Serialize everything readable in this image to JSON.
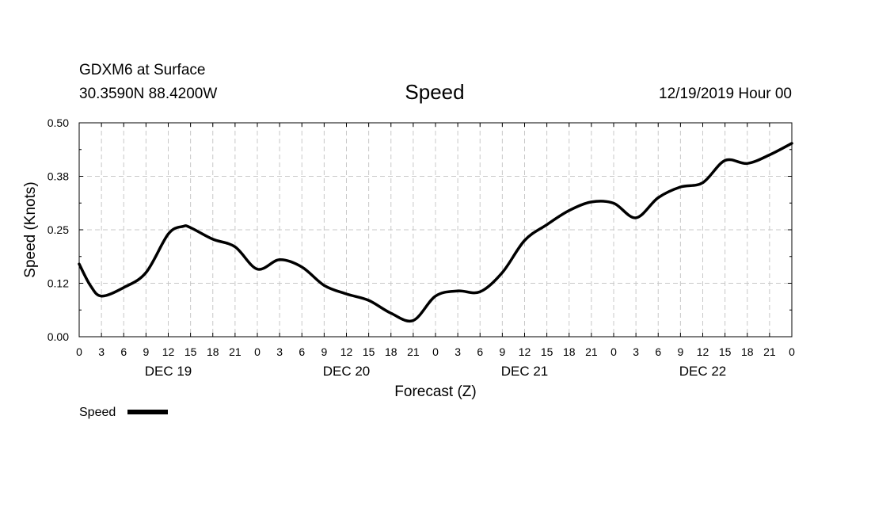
{
  "header": {
    "station": "GDXM6 at Surface",
    "location": "30.3590N 88.4200W",
    "title": "Speed",
    "run": "12/19/2019 Hour 00"
  },
  "chart_data": {
    "type": "line",
    "title": "Speed",
    "xlabel": "Forecast (Z)",
    "ylabel": "Speed (Knots)",
    "x_unit": "hours from 12/19/2019 00Z",
    "xlim": [
      0,
      96
    ],
    "ylim": [
      0,
      0.5
    ],
    "y_ticks": [
      {
        "value": 0,
        "label": "0.00"
      },
      {
        "value": 0.125,
        "label": "0.12"
      },
      {
        "value": 0.25,
        "label": "0.25"
      },
      {
        "value": 0.375,
        "label": "0.38"
      },
      {
        "value": 0.5,
        "label": "0.50"
      }
    ],
    "x_ticks": [
      {
        "hour": 0,
        "label": "0"
      },
      {
        "hour": 3,
        "label": "3"
      },
      {
        "hour": 6,
        "label": "6"
      },
      {
        "hour": 9,
        "label": "9"
      },
      {
        "hour": 12,
        "label": "12"
      },
      {
        "hour": 15,
        "label": "15"
      },
      {
        "hour": 18,
        "label": "18"
      },
      {
        "hour": 21,
        "label": "21"
      },
      {
        "hour": 24,
        "label": "0"
      },
      {
        "hour": 27,
        "label": "3"
      },
      {
        "hour": 30,
        "label": "6"
      },
      {
        "hour": 33,
        "label": "9"
      },
      {
        "hour": 36,
        "label": "12"
      },
      {
        "hour": 39,
        "label": "15"
      },
      {
        "hour": 42,
        "label": "18"
      },
      {
        "hour": 45,
        "label": "21"
      },
      {
        "hour": 48,
        "label": "0"
      },
      {
        "hour": 51,
        "label": "3"
      },
      {
        "hour": 54,
        "label": "6"
      },
      {
        "hour": 57,
        "label": "9"
      },
      {
        "hour": 60,
        "label": "12"
      },
      {
        "hour": 63,
        "label": "15"
      },
      {
        "hour": 66,
        "label": "18"
      },
      {
        "hour": 69,
        "label": "21"
      },
      {
        "hour": 72,
        "label": "0"
      },
      {
        "hour": 75,
        "label": "3"
      },
      {
        "hour": 78,
        "label": "6"
      },
      {
        "hour": 81,
        "label": "9"
      },
      {
        "hour": 84,
        "label": "12"
      },
      {
        "hour": 87,
        "label": "15"
      },
      {
        "hour": 90,
        "label": "18"
      },
      {
        "hour": 93,
        "label": "21"
      },
      {
        "hour": 96,
        "label": "0"
      }
    ],
    "date_labels": [
      {
        "hour": 12,
        "label": "DEC 19"
      },
      {
        "hour": 36,
        "label": "DEC 20"
      },
      {
        "hour": 60,
        "label": "DEC 21"
      },
      {
        "hour": 84,
        "label": "DEC 22"
      }
    ],
    "grid": true,
    "legend": {
      "position": "bottom-left"
    },
    "series": [
      {
        "name": "Speed",
        "color": "#000000",
        "points": [
          [
            0,
            0.17
          ],
          [
            1.5,
            0.12
          ],
          [
            3,
            0.095
          ],
          [
            6,
            0.115
          ],
          [
            9,
            0.15
          ],
          [
            12,
            0.24
          ],
          [
            14,
            0.258
          ],
          [
            15,
            0.255
          ],
          [
            18,
            0.228
          ],
          [
            21,
            0.21
          ],
          [
            24,
            0.158
          ],
          [
            27,
            0.18
          ],
          [
            30,
            0.163
          ],
          [
            33,
            0.12
          ],
          [
            36,
            0.1
          ],
          [
            39,
            0.085
          ],
          [
            42,
            0.055
          ],
          [
            45,
            0.038
          ],
          [
            48,
            0.095
          ],
          [
            51,
            0.107
          ],
          [
            54,
            0.105
          ],
          [
            57,
            0.15
          ],
          [
            60,
            0.225
          ],
          [
            63,
            0.262
          ],
          [
            66,
            0.295
          ],
          [
            69,
            0.315
          ],
          [
            72,
            0.312
          ],
          [
            75,
            0.278
          ],
          [
            78,
            0.325
          ],
          [
            81,
            0.35
          ],
          [
            84,
            0.36
          ],
          [
            87,
            0.412
          ],
          [
            90,
            0.405
          ],
          [
            93,
            0.425
          ],
          [
            96,
            0.452
          ]
        ]
      }
    ]
  }
}
